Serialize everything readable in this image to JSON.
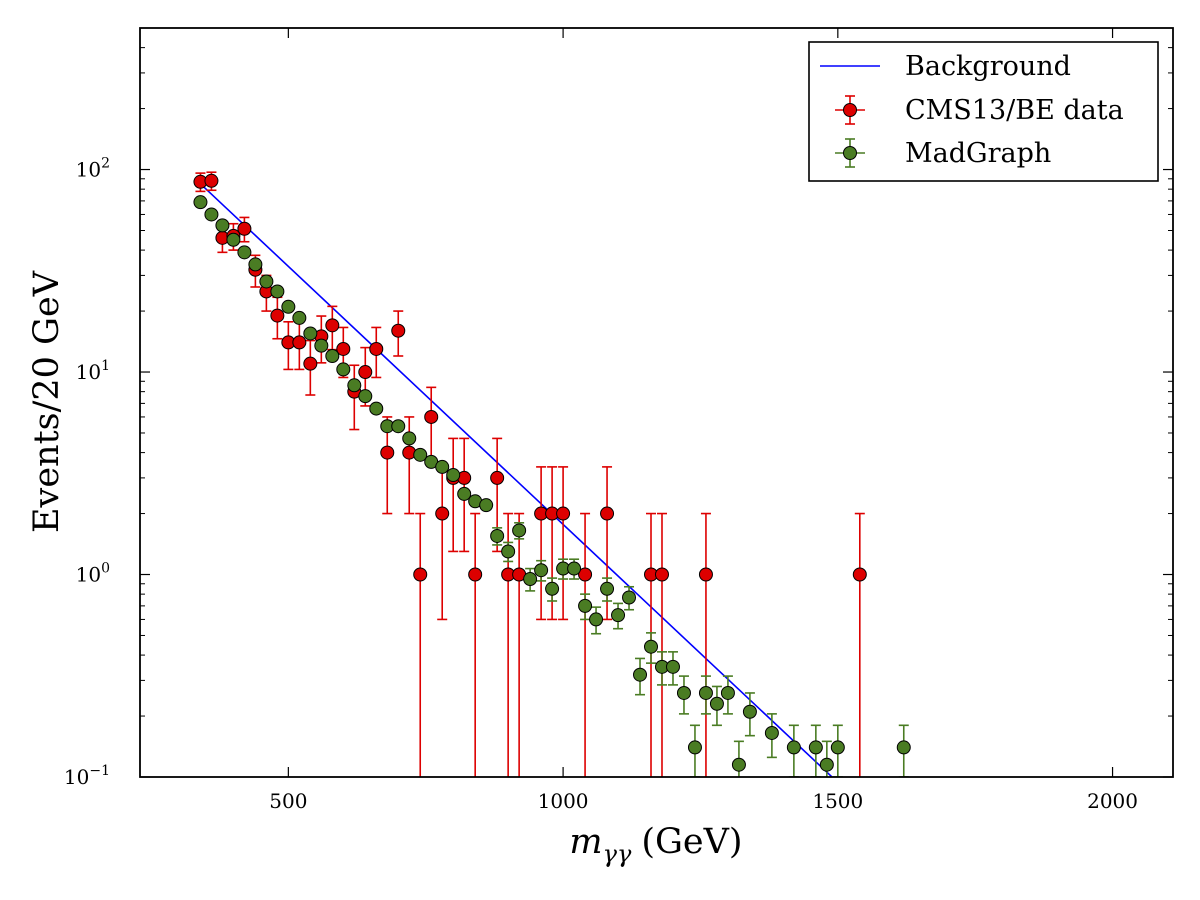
{
  "chart_data": {
    "type": "scatter",
    "title": "",
    "xlabel": "m_γγ (GeV)",
    "xlabel_main": "m",
    "xlabel_sub": "γγ",
    "xlabel_unit": "(GeV)",
    "ylabel": "Events/20 GeV",
    "xlim": [
      230,
      2110
    ],
    "ylim": [
      0.1,
      500
    ],
    "yscale": "log",
    "grid": false,
    "legend_position": "top-right",
    "x_ticks": [
      500,
      1000,
      1500,
      2000
    ],
    "y_ticks": [
      0.1,
      1,
      10,
      100
    ],
    "y_tick_base": "10",
    "y_tick_exponents": [
      "−1",
      "0",
      "1",
      "2"
    ],
    "series": [
      {
        "name": "Background",
        "kind": "line",
        "color": "#0000ff",
        "x": [
          340,
          1500
        ],
        "y": [
          85,
          0.094
        ]
      },
      {
        "name": "CMS13/BE data",
        "kind": "errorbar",
        "color": "#dd0000",
        "x_err": 10,
        "points": [
          [
            340,
            87,
            9
          ],
          [
            360,
            88,
            9
          ],
          [
            380,
            46,
            7
          ],
          [
            400,
            47,
            7
          ],
          [
            420,
            51,
            7
          ],
          [
            440,
            32,
            5.7
          ],
          [
            460,
            25,
            5
          ],
          [
            480,
            19,
            4.4
          ],
          [
            500,
            14,
            3.7
          ],
          [
            520,
            14,
            3.7
          ],
          [
            540,
            11,
            3.3
          ],
          [
            560,
            15,
            3.9
          ],
          [
            580,
            17,
            4.1
          ],
          [
            600,
            13,
            3.6
          ],
          [
            620,
            8,
            2.8
          ],
          [
            640,
            10,
            3.2
          ],
          [
            660,
            13,
            3.6
          ],
          [
            680,
            4,
            2
          ],
          [
            700,
            16,
            4
          ],
          [
            720,
            4,
            2
          ],
          [
            740,
            1,
            1
          ],
          [
            760,
            6,
            2.4
          ],
          [
            780,
            2,
            1.4
          ],
          [
            800,
            3,
            1.7
          ],
          [
            820,
            3,
            1.7
          ],
          [
            840,
            1,
            1
          ],
          [
            880,
            3,
            1.7
          ],
          [
            900,
            1,
            1
          ],
          [
            920,
            1,
            1
          ],
          [
            960,
            2,
            1.4
          ],
          [
            980,
            2,
            1.4
          ],
          [
            1000,
            2,
            1.4
          ],
          [
            1040,
            1,
            1
          ],
          [
            1080,
            2,
            1.4
          ],
          [
            1160,
            1,
            1
          ],
          [
            1180,
            1,
            1
          ],
          [
            1260,
            1,
            1
          ],
          [
            1540,
            1,
            1
          ]
        ]
      },
      {
        "name": "MadGraph",
        "kind": "errorbar",
        "color": "#4a7c23",
        "x_err": 10,
        "points": [
          [
            340,
            69,
            0
          ],
          [
            360,
            60,
            0
          ],
          [
            380,
            53,
            0
          ],
          [
            400,
            45,
            0
          ],
          [
            420,
            39,
            0
          ],
          [
            440,
            34,
            0
          ],
          [
            460,
            28,
            0
          ],
          [
            480,
            25,
            0
          ],
          [
            500,
            21,
            0
          ],
          [
            520,
            18.5,
            0
          ],
          [
            540,
            15.5,
            0
          ],
          [
            560,
            13.5,
            0
          ],
          [
            580,
            12,
            0
          ],
          [
            600,
            10.3,
            0
          ],
          [
            620,
            8.6,
            0
          ],
          [
            640,
            7.6,
            0
          ],
          [
            660,
            6.6,
            0
          ],
          [
            680,
            5.4,
            0
          ],
          [
            700,
            5.4,
            0
          ],
          [
            720,
            4.7,
            0
          ],
          [
            740,
            3.9,
            0
          ],
          [
            760,
            3.6,
            0
          ],
          [
            780,
            3.4,
            0
          ],
          [
            800,
            3.1,
            0
          ],
          [
            820,
            2.5,
            0
          ],
          [
            840,
            2.3,
            0
          ],
          [
            860,
            2.2,
            0
          ],
          [
            880,
            1.55,
            0.15
          ],
          [
            900,
            1.3,
            0.14
          ],
          [
            920,
            1.65,
            0.15
          ],
          [
            940,
            0.95,
            0.12
          ],
          [
            960,
            1.05,
            0.12
          ],
          [
            980,
            0.85,
            0.11
          ],
          [
            1000,
            1.07,
            0.12
          ],
          [
            1020,
            1.07,
            0.12
          ],
          [
            1040,
            0.7,
            0.1
          ],
          [
            1060,
            0.6,
            0.09
          ],
          [
            1080,
            0.85,
            0.11
          ],
          [
            1100,
            0.63,
            0.09
          ],
          [
            1120,
            0.77,
            0.1
          ],
          [
            1140,
            0.32,
            0.065
          ],
          [
            1160,
            0.44,
            0.075
          ],
          [
            1180,
            0.35,
            0.065
          ],
          [
            1200,
            0.35,
            0.065
          ],
          [
            1220,
            0.26,
            0.055
          ],
          [
            1240,
            0.14,
            0.04
          ],
          [
            1260,
            0.26,
            0.055
          ],
          [
            1280,
            0.23,
            0.05
          ],
          [
            1300,
            0.26,
            0.055
          ],
          [
            1320,
            0.115,
            0.035
          ],
          [
            1340,
            0.21,
            0.05
          ],
          [
            1380,
            0.165,
            0.04
          ],
          [
            1420,
            0.14,
            0.04
          ],
          [
            1460,
            0.14,
            0.04
          ],
          [
            1480,
            0.115,
            0.035
          ],
          [
            1500,
            0.14,
            0.04
          ],
          [
            1620,
            0.14,
            0.04
          ]
        ]
      }
    ]
  }
}
